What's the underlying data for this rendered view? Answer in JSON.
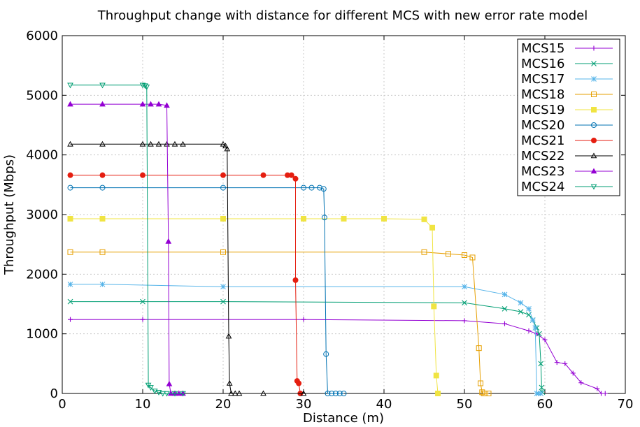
{
  "chart_data": {
    "type": "line",
    "title": "Throughput change with distance for different MCS with new error rate model",
    "xlabel": "Distance (m)",
    "ylabel": "Throughput (Mbps)",
    "xlim": [
      0,
      70
    ],
    "ylim": [
      0,
      6000
    ],
    "xticks": [
      0,
      10,
      20,
      30,
      40,
      50,
      60,
      70
    ],
    "yticks": [
      0,
      1000,
      2000,
      3000,
      4000,
      5000,
      6000
    ],
    "grid": true,
    "legend_position": "top-right",
    "series": [
      {
        "name": "MCS15",
        "color": "#9400d3",
        "marker": "plus",
        "x": [
          1,
          10,
          30,
          50,
          55,
          58,
          59,
          60,
          61.5,
          62.5,
          63.5,
          64.5,
          66.5,
          67,
          67.5
        ],
        "y": [
          1240,
          1240,
          1240,
          1220,
          1170,
          1050,
          1000,
          900,
          520,
          500,
          340,
          180,
          80,
          0,
          0
        ]
      },
      {
        "name": "MCS16",
        "color": "#009e73",
        "marker": "cross",
        "x": [
          1,
          10,
          20,
          50,
          55,
          57,
          58,
          58.5,
          59,
          59.3,
          59.5,
          59.6,
          59.7
        ],
        "y": [
          1540,
          1540,
          1540,
          1520,
          1420,
          1370,
          1320,
          1230,
          1100,
          1000,
          500,
          100,
          20
        ]
      },
      {
        "name": "MCS17",
        "color": "#56b4e9",
        "marker": "star",
        "x": [
          1,
          5,
          20,
          50,
          55,
          57,
          58,
          58.5,
          58.8,
          59,
          59.2,
          59.5
        ],
        "y": [
          1830,
          1830,
          1790,
          1790,
          1660,
          1520,
          1420,
          1230,
          1100,
          0,
          0,
          0
        ]
      },
      {
        "name": "MCS18",
        "color": "#e69f00",
        "marker": "open-square",
        "x": [
          1,
          5,
          20,
          45,
          48,
          50,
          51,
          51.8,
          52,
          52.2,
          52.4,
          52.6,
          53
        ],
        "y": [
          2370,
          2370,
          2370,
          2370,
          2340,
          2320,
          2280,
          760,
          170,
          20,
          0,
          0,
          0
        ]
      },
      {
        "name": "MCS19",
        "color": "#f0e442",
        "marker": "filled-square",
        "x": [
          1,
          5,
          20,
          30,
          35,
          40,
          45,
          46,
          46.2,
          46.5,
          46.7
        ],
        "y": [
          2930,
          2930,
          2930,
          2930,
          2930,
          2930,
          2920,
          2780,
          1460,
          300,
          0
        ]
      },
      {
        "name": "MCS20",
        "color": "#0072b2",
        "marker": "open-circle",
        "x": [
          1,
          5,
          20,
          30,
          31,
          32,
          32.5,
          32.6,
          32.8,
          33,
          33.5,
          34,
          34.5,
          35
        ],
        "y": [
          3450,
          3450,
          3450,
          3450,
          3450,
          3450,
          3430,
          2950,
          660,
          0,
          0,
          0,
          0,
          0
        ]
      },
      {
        "name": "MCS21",
        "color": "#e51e10",
        "marker": "filled-circle",
        "x": [
          1,
          5,
          10,
          20,
          25,
          28,
          28.5,
          29,
          29,
          29.2,
          29.4,
          29.6
        ],
        "y": [
          3660,
          3660,
          3660,
          3660,
          3660,
          3660,
          3660,
          3600,
          1900,
          210,
          170,
          0
        ]
      },
      {
        "name": "MCS22",
        "color": "#000000",
        "marker": "open-triangle",
        "x": [
          1,
          5,
          10,
          11,
          12,
          13,
          14,
          15,
          20,
          20.3,
          20.5,
          20.7,
          20.8,
          21,
          21.5,
          22,
          25,
          30
        ],
        "y": [
          4180,
          4180,
          4180,
          4180,
          4180,
          4180,
          4180,
          4180,
          4180,
          4150,
          4100,
          960,
          170,
          0,
          0,
          0,
          0,
          0
        ]
      },
      {
        "name": "MCS23",
        "color": "#9400d3",
        "marker": "filled-triangle",
        "x": [
          1,
          5,
          10,
          11,
          12,
          13,
          13.2,
          13.3,
          13.5,
          14,
          14.5,
          15
        ],
        "y": [
          4850,
          4850,
          4850,
          4850,
          4850,
          4830,
          2550,
          160,
          0,
          0,
          0,
          0
        ]
      },
      {
        "name": "MCS24",
        "color": "#009e73",
        "marker": "down-triangle",
        "x": [
          1,
          5,
          10,
          10.3,
          10.5,
          10.7,
          11,
          11.5,
          12,
          12.5,
          13,
          14,
          15
        ],
        "y": [
          5170,
          5170,
          5170,
          5160,
          5140,
          140,
          100,
          40,
          20,
          0,
          0,
          0,
          0
        ]
      }
    ]
  }
}
